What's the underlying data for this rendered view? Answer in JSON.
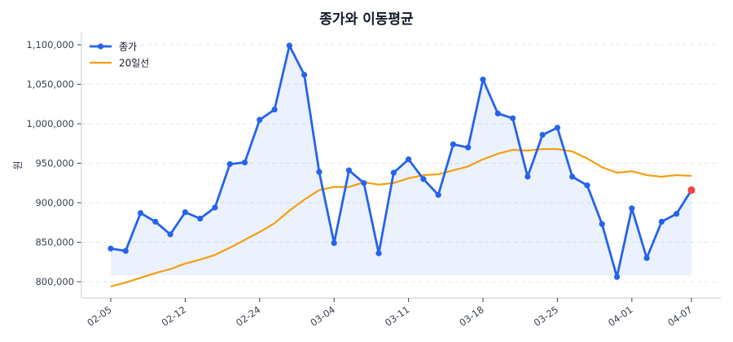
{
  "title": "종가와 이동평균",
  "legend": {
    "items": [
      {
        "label": "종가",
        "color": "#2563eb",
        "marker": "circle"
      },
      {
        "label": "20일선",
        "color": "#f59e0b",
        "marker": "none"
      }
    ]
  },
  "colors": {
    "close": "#2563eb",
    "ma": "#f59e0b",
    "last_point": "#ef4444",
    "fill": "#2563eb",
    "grid": "#e5e7eb",
    "spine": "#d1d5db",
    "text": "#374151"
  },
  "chart_data": {
    "type": "line",
    "title": "종가와 이동평균",
    "xlabel": "",
    "ylabel": "원",
    "ylim": [
      780000,
      1115000
    ],
    "yticks": [
      800000,
      850000,
      900000,
      950000,
      1000000,
      1050000,
      1100000
    ],
    "ytick_labels": [
      "800,000",
      "850,000",
      "900,000",
      "950,000",
      "1,000,000",
      "1,050,000",
      "1,100,000"
    ],
    "xtick_indices": [
      0,
      5,
      10,
      15,
      20,
      25,
      30,
      35,
      39
    ],
    "xtick_labels": [
      "02-05",
      "02-12",
      "02-24",
      "03-04",
      "03-11",
      "03-18",
      "03-25",
      "04-01",
      "04-07"
    ],
    "grid": "y-dashed",
    "legend_position": "upper left",
    "highlight_last_point": true,
    "fill_under_close": true,
    "fill_baseline": 808000,
    "series": [
      {
        "name": "종가",
        "values": [
          842000,
          839000,
          887000,
          876000,
          860000,
          888000,
          880000,
          894000,
          949000,
          951000,
          1005000,
          1018000,
          1099000,
          1062000,
          939000,
          849000,
          941000,
          925000,
          836000,
          938000,
          955000,
          930000,
          910000,
          974000,
          970000,
          1056000,
          1013000,
          1007000,
          933000,
          986000,
          995000,
          933000,
          922000,
          873000,
          806000,
          893000,
          830000,
          876000,
          886000,
          916000
        ]
      },
      {
        "name": "20일선",
        "values": [
          794000,
          799000,
          805000,
          811000,
          816000,
          823000,
          828000,
          834000,
          843000,
          853000,
          863000,
          874000,
          890000,
          904000,
          916000,
          920000,
          920000,
          926000,
          923000,
          925000,
          931000,
          935000,
          936000,
          941000,
          946000,
          955000,
          962000,
          967000,
          966000,
          968000,
          968000,
          965000,
          956000,
          945000,
          938000,
          940000,
          935000,
          933000,
          935000,
          934000
        ]
      }
    ]
  }
}
